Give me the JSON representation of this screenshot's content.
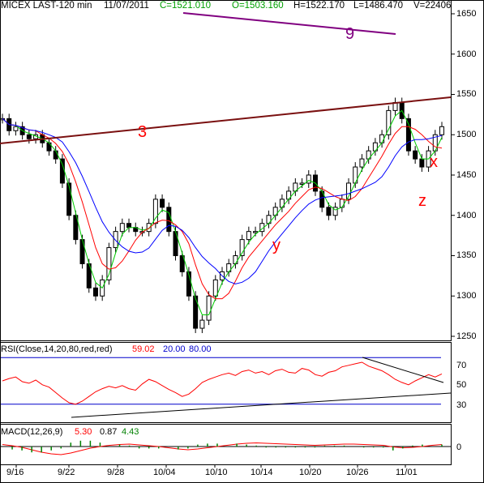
{
  "header": {
    "symbol": "MICEX LAST-120 min",
    "date": "11/07/2011",
    "close": "C=1521.010",
    "open": "O=1503.160",
    "high": "H=1522.170",
    "low": "L=1486.470",
    "volume": "V=22406"
  },
  "price_axis": [
    "1650",
    "1600",
    "1550",
    "1500",
    "1450",
    "1400",
    "1350",
    "1300",
    "1250"
  ],
  "rsi_panel": {
    "title": "RSI(Close,14,20,80,red,red)",
    "value": "59.02",
    "lower": "20.00",
    "upper": "80.00",
    "axis": [
      "70",
      "50",
      "30"
    ]
  },
  "macd_panel": {
    "title": "MACD(12,26,9)",
    "macd": "5.30",
    "signal": "0.87",
    "hist": "4.43",
    "axis": [
      "0"
    ]
  },
  "x_axis": [
    "9/16",
    "9/22",
    "9/28",
    "10/04",
    "10/10",
    "10/14",
    "10/20",
    "10/26",
    "11/01"
  ],
  "wave_labels": {
    "w3": "3",
    "w9": "9",
    "wx": "x",
    "wy": "y",
    "wz": "z"
  },
  "colors": {
    "trendline": "#7a1010",
    "wave9": "#800080",
    "wave_label": "#ff0000",
    "ma_fast": "#00cc00",
    "ma_mid": "#ff0000",
    "ma_slow": "#0000ff",
    "rsi_line": "#ff0000",
    "rsi_levels": "#0000cc",
    "macd_hist": "#008000"
  },
  "chart_data": {
    "type": "candlestick",
    "series": [
      {
        "name": "MICEX",
        "close_path": [
          1520,
          1505,
          1510,
          1500,
          1495,
          1500,
          1490,
          1480,
          1470,
          1440,
          1400,
          1370,
          1340,
          1310,
          1300,
          1320,
          1360,
          1380,
          1390,
          1385,
          1380,
          1380,
          1390,
          1420,
          1410,
          1380,
          1350,
          1330,
          1300,
          1260,
          1270,
          1300,
          1320,
          1330,
          1340,
          1350,
          1370,
          1380,
          1380,
          1390,
          1400,
          1410,
          1420,
          1430,
          1440,
          1440,
          1450,
          1430,
          1410,
          1400,
          1410,
          1420,
          1440,
          1460,
          1470,
          1480,
          1490,
          1500,
          1530,
          1540,
          1520,
          1480,
          1470,
          1460,
          1480,
          1500,
          1510
        ]
      }
    ],
    "price_axis_ticks": [
      1650,
      1600,
      1550,
      1500,
      1450,
      1400,
      1350,
      1300,
      1250
    ],
    "rsi_levels": [
      20,
      80
    ]
  }
}
